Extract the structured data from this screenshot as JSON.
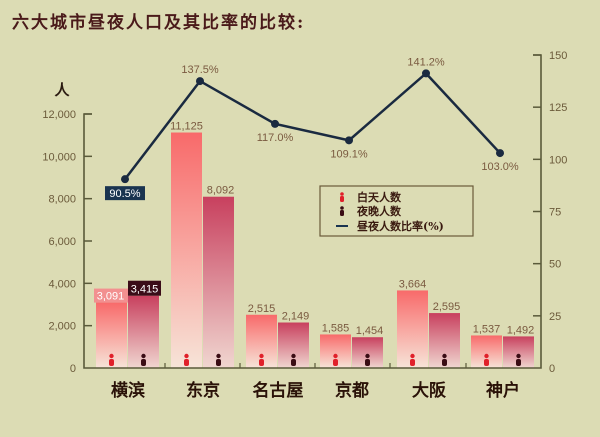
{
  "title": "六大城市昼夜人口及其比率的比较:",
  "chart_data": {
    "type": "bar",
    "title": "六大城市昼夜人口及其比率的比较:",
    "categories": [
      "横滨",
      "东京",
      "名古屋",
      "京都",
      "大阪",
      "神户"
    ],
    "series": [
      {
        "name": "白天人数",
        "type": "bar",
        "axis": "left",
        "color": "#f06060",
        "values": [
          3091,
          11125,
          2515,
          1585,
          3664,
          1537
        ]
      },
      {
        "name": "夜晚人数",
        "type": "bar",
        "axis": "left",
        "color": "#c04060",
        "values": [
          3415,
          8092,
          2149,
          1454,
          2595,
          1492
        ]
      },
      {
        "name": "昼夜人数比率(%)",
        "type": "line",
        "axis": "right",
        "color": "#1a2a40",
        "values": [
          90.5,
          137.5,
          117.0,
          109.1,
          141.2,
          103.0
        ]
      }
    ],
    "bar_labels": {
      "day": [
        "3,091",
        "11,125",
        "2,515",
        "1,585",
        "3,664",
        "1,537"
      ],
      "night": [
        "3,415",
        "8,092",
        "2,149",
        "1,454",
        "2,595",
        "1,492"
      ]
    },
    "line_labels": [
      "90.5%",
      "137.5%",
      "117.0%",
      "109.1%",
      "141.2%",
      "103.0%"
    ],
    "ylabel": "人",
    "ylim": [
      0,
      12000
    ],
    "yticks": [
      "0",
      "2,000",
      "4,000",
      "6,000",
      "8,000",
      "10,000",
      "12,000"
    ],
    "y2lim": [
      0,
      150
    ],
    "y2ticks": [
      "0",
      "25",
      "50",
      "75",
      "100",
      "125",
      "150"
    ],
    "legend": [
      "白天人数",
      "夜晚人数",
      "昼夜人数比率(%)"
    ],
    "legend_position": "inside-center-right",
    "grid": false
  }
}
